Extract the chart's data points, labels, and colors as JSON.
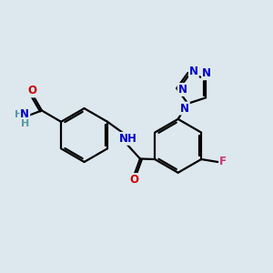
{
  "bg_color": "#dde8ee",
  "bond_color": "#000000",
  "bond_width": 1.6,
  "font_size_atom": 8.5,
  "colors": {
    "N": "#0000cc",
    "O": "#cc0000",
    "F": "#cc3377",
    "H_gray": "#5599aa"
  },
  "xlim": [
    0,
    10
  ],
  "ylim": [
    0,
    10
  ]
}
